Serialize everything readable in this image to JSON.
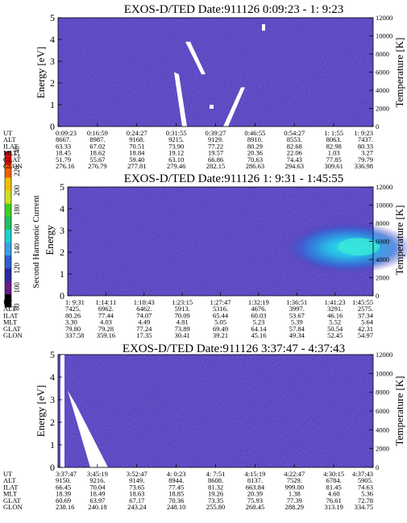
{
  "colorbar": {
    "label": "Second Harmonic Current",
    "ticks": [
      "80",
      "100",
      "120",
      "140",
      "160",
      "180",
      "200",
      "220",
      "240"
    ],
    "colors": [
      "#000000",
      "#6a1a8a",
      "#2a2aa0",
      "#2f5fd0",
      "#3aa0e0",
      "#20d0d0",
      "#20c060",
      "#40d020",
      "#d0e020",
      "#f0c000",
      "#f06000",
      "#e01010"
    ]
  },
  "chart_data": [
    {
      "type": "heatmap",
      "title": "EXOS-D/TED   Date:911126  0:09:23 - 1: 9:23",
      "ylabel": "Energy [eV]",
      "ylabel_right": "Temperature [K]",
      "ylim": [
        0,
        5
      ],
      "ylim_right": [
        0,
        12000
      ],
      "yticks": [
        "0",
        "1",
        "2",
        "3",
        "4",
        "5"
      ],
      "yticks_right": [
        "0",
        "2000",
        "4000",
        "6000",
        "8000",
        "10000",
        "12000"
      ],
      "background": "#4a3ab8",
      "highlight": "none",
      "rows": [
        {
          "label": "UT",
          "values": [
            "0:09:23",
            "0:16:59",
            "0:24:27",
            "0:31:55",
            "0:39:27",
            "0:46:55",
            "0:54:27",
            "1: 1:55",
            "1: 9:23"
          ]
        },
        {
          "label": "ALT",
          "values": [
            "8667.",
            "8987.",
            "9168.",
            "9215.",
            "9129.",
            "8910.",
            "8553.",
            "8063.",
            "7437."
          ]
        },
        {
          "label": "ILAT",
          "values": [
            "63.33",
            "67.02",
            "70.51",
            "73.90",
            "77.22",
            "80.29",
            "82.68",
            "82.98",
            "80.33"
          ]
        },
        {
          "label": "MLT",
          "values": [
            "18.45",
            "18.62",
            "18.84",
            "19.12",
            "19.57",
            "20.36",
            "22.06",
            "1.03",
            "3.27"
          ]
        },
        {
          "label": "GLAT",
          "values": [
            "51.79",
            "55.67",
            "59.40",
            "63.10",
            "66.86",
            "70.63",
            "74.43",
            "77.85",
            "79.79"
          ]
        },
        {
          "label": "GLON",
          "values": [
            "276.16",
            "276.79",
            "277.81",
            "279.46",
            "282.15",
            "286.63",
            "294.63",
            "309.61",
            "336.98"
          ]
        }
      ]
    },
    {
      "type": "heatmap",
      "title": "EXOS-D/TED   Date:911126  1: 9:31 - 1:45:55",
      "ylabel": "Energy",
      "ylabel_right": "Temperature [K]",
      "ylim": [
        0,
        5
      ],
      "ylim_right": [
        0,
        12000
      ],
      "yticks": [
        "0",
        "1",
        "2",
        "3",
        "4",
        "5"
      ],
      "yticks_right": [
        "0",
        "2000",
        "4000",
        "6000",
        "8000",
        "10000",
        "12000"
      ],
      "background": "#4a3ab8",
      "highlight": "cyan-blob",
      "rows": [
        {
          "label": "UT",
          "values": [
            "1: 9:31",
            "1:14:11",
            "1:18:43",
            "1:23:15",
            "1:27:47",
            "1:32:19",
            "1:36:51",
            "1:41:23",
            "1:45:55"
          ]
        },
        {
          "label": "ALT",
          "values": [
            "7425.",
            "6962.",
            "6462.",
            "5913.",
            "5316.",
            "4676.",
            "3997.",
            "3291.",
            "2575."
          ]
        },
        {
          "label": "ILAT",
          "values": [
            "80.26",
            "77.44",
            "74.07",
            "70.09",
            "65.44",
            "60.03",
            "53.67",
            "46.16",
            "37.34"
          ]
        },
        {
          "label": "MLT",
          "values": [
            "3.30",
            "4.03",
            "4.49",
            "4.81",
            "5.05",
            "5.23",
            "5.39",
            "5.52",
            "5.64"
          ]
        },
        {
          "label": "GLAT",
          "values": [
            "79.80",
            "79.28",
            "77.24",
            "73.89",
            "69.49",
            "64.14",
            "57.84",
            "50.54",
            "42.31"
          ]
        },
        {
          "label": "GLON",
          "values": [
            "337.58",
            "359.16",
            "17.35",
            "30.41",
            "39.21",
            "45.16",
            "49.34",
            "52.45",
            "54.97"
          ]
        }
      ]
    },
    {
      "type": "heatmap",
      "title": "EXOS-D/TED   Date:911126  3:37:47 - 4:37:43",
      "ylabel": "Energy [eV]",
      "ylabel_right": "Temperature [K]",
      "ylim": [
        0,
        5
      ],
      "ylim_right": [
        0,
        12000
      ],
      "yticks": [
        "0",
        "1",
        "2",
        "3",
        "4",
        "5"
      ],
      "yticks_right": [
        "0",
        "2000",
        "4000",
        "6000",
        "8000",
        "10000",
        "12000"
      ],
      "background": "#4a3ab8",
      "highlight": "none",
      "rows": [
        {
          "label": "UT",
          "values": [
            "3:37:47",
            "3:45:19",
            "3:52:47",
            "4: 0:23",
            "4: 7:51",
            "4:15:19",
            "4:22:47",
            "4:30:15",
            "4:37:43"
          ]
        },
        {
          "label": "ALT",
          "values": [
            "9150.",
            "9216.",
            "9149.",
            "8944.",
            "8608.",
            "8137.",
            "7529.",
            "6784.",
            "5905."
          ]
        },
        {
          "label": "ILAT",
          "values": [
            "66.45",
            "70.04",
            "73.65",
            "77.45",
            "81.32",
            "663.84",
            "999.00",
            "81.45",
            "74.63"
          ]
        },
        {
          "label": "MLT",
          "values": [
            "18.39",
            "18.49",
            "18.63",
            "18.85",
            "19.26",
            "20.39",
            "1.38",
            "4.60",
            "5.36"
          ]
        },
        {
          "label": "GLAT",
          "values": [
            "60.69",
            "63.97",
            "67.17",
            "70.36",
            "73.35",
            "75.93",
            "77.39",
            "76.61",
            "72.78"
          ]
        },
        {
          "label": "GLON",
          "values": [
            "238.16",
            "240.18",
            "243.24",
            "248.10",
            "255.80",
            "268.45",
            "288.29",
            "313.19",
            "334.75"
          ]
        }
      ]
    }
  ]
}
